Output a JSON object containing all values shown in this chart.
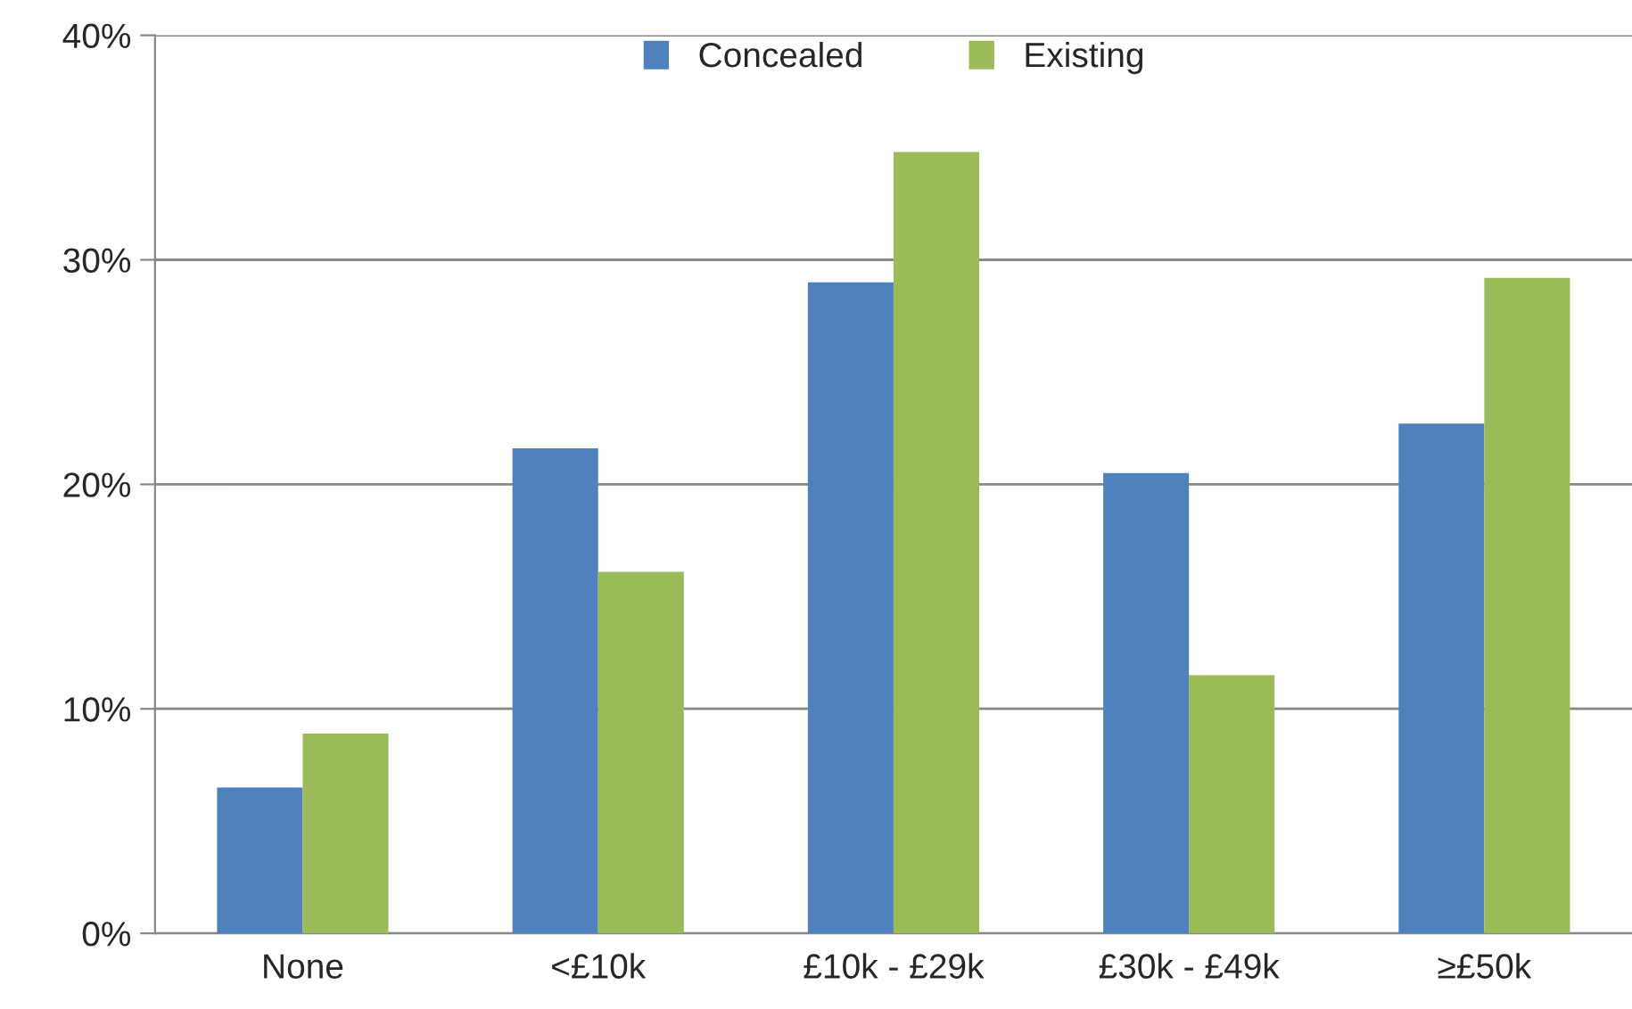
{
  "chart_data": {
    "type": "bar",
    "categories": [
      "None",
      "<£10k",
      "£10k - £29k",
      "£30k - £49k",
      "≥£50k"
    ],
    "series": [
      {
        "name": "Concealed",
        "color": "#4f81bd",
        "values": [
          6.5,
          21.6,
          29.0,
          20.5,
          22.7
        ]
      },
      {
        "name": "Existing",
        "color": "#9bbb59",
        "values": [
          8.9,
          16.1,
          34.8,
          11.5,
          29.2
        ]
      }
    ],
    "ylim": [
      0,
      40
    ],
    "yticks": [
      {
        "value": 0,
        "label": "0%"
      },
      {
        "value": 10,
        "label": "10%"
      },
      {
        "value": 20,
        "label": "20%"
      },
      {
        "value": 30,
        "label": "30%"
      },
      {
        "value": 40,
        "label": "40%"
      }
    ],
    "grid": "y",
    "legend": "top"
  }
}
